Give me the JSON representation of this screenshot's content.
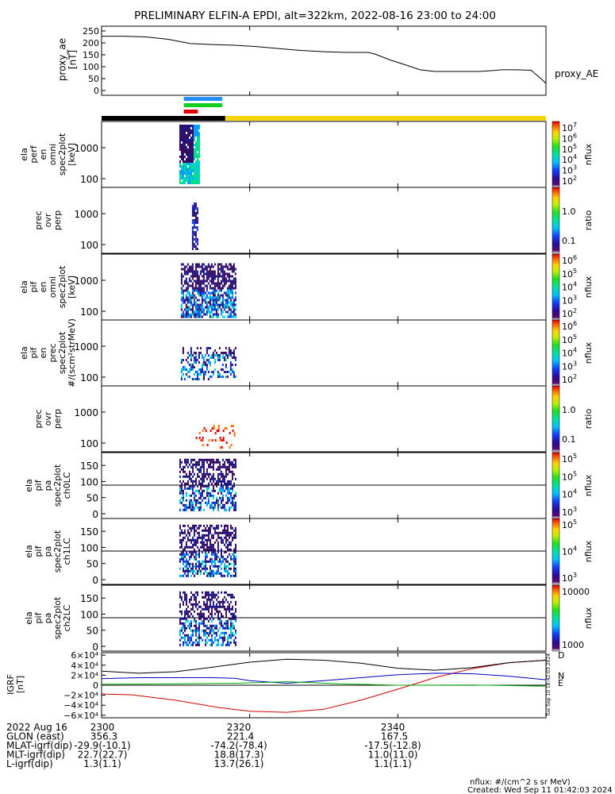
{
  "page": {
    "title": "PRELIMINARY ELFIN-A EPDI, alt=322km, 2022-08-16 23:00 to 24:00",
    "footer_unit": "nflux: #/(cm^2 s sr MeV)",
    "footer_created": "Created: Wed Sep 11 01:42:03 2024",
    "side_stamp": "Tue Sep 10 18:42:03 2024"
  },
  "colors": {
    "black": "#000000",
    "yellow": "#f5d50a",
    "blue_bar": "#1e90ff",
    "green_bar": "#10d020",
    "red_bar": "#e00000",
    "igrf_d": "#d00000",
    "igrf_n": "#0000c0",
    "igrf_e": "#00b000"
  },
  "chart_data": [
    {
      "type": "line",
      "id": "proxy_ae",
      "ylabel": "proxy_ae\n[nT]",
      "legend": "proxy_AE",
      "ylim": [
        0,
        270
      ],
      "yticks": [
        "0",
        "50",
        "100",
        "150",
        "200",
        "250"
      ],
      "x": [
        2300,
        2303,
        2306,
        2309,
        2312,
        2315,
        2318,
        2321,
        2324,
        2327,
        2330,
        2333,
        2336,
        2337,
        2339,
        2341,
        2343,
        2345,
        2348,
        2351,
        2353,
        2354,
        2356,
        2358,
        2359.5,
        2400
      ],
      "values": [
        228,
        228,
        225,
        215,
        197,
        193,
        190,
        184,
        176,
        168,
        163,
        160,
        160,
        152,
        128,
        108,
        87,
        80,
        80,
        80,
        84,
        87,
        87,
        85,
        45,
        30
      ]
    },
    {
      "type": "timeline",
      "id": "status_bars",
      "bars": [
        {
          "name": "science_blue",
          "start": 2311.1,
          "end": 2316.3,
          "color_key": "blue_bar"
        },
        {
          "name": "science_green",
          "start": 2311.1,
          "end": 2316.3,
          "color_key": "green_bar"
        },
        {
          "name": "science_red",
          "start": 2311.1,
          "end": 2313.0,
          "color_key": "red_bar"
        },
        {
          "name": "dark",
          "start": 2300,
          "end": 2316.7,
          "color_key": "black"
        },
        {
          "name": "sunlit",
          "start": 2316.7,
          "end": 2400,
          "color_key": "yellow"
        }
      ]
    },
    {
      "type": "heatmap",
      "id": "ela_perf_omni",
      "ylabel": "ela\nperf\nen\nomni\nspec2plot\n[keV]",
      "yscale": "log",
      "yticks": [
        "100",
        "1000"
      ],
      "colorbar": {
        "title": "nflux",
        "labels": [
          "10^7",
          "10^6",
          "10^5",
          "10^4",
          "10^3",
          "10^2"
        ]
      }
    },
    {
      "type": "heatmap",
      "id": "ela_perf_ratio",
      "ylabel": "prec\novr\nperp",
      "yscale": "log",
      "yticks": [
        "100",
        "1000"
      ],
      "colorbar": {
        "title": "ratio",
        "labels": [
          "1.0",
          "0.1"
        ]
      }
    },
    {
      "type": "heatmap",
      "id": "ela_pif_omni",
      "ylabel": "ela\npif\nen\nomni\nspec2plot\n[keV]",
      "yscale": "log",
      "yticks": [
        "100",
        "1000"
      ],
      "colorbar": {
        "title": "nflux",
        "labels": [
          "10^6",
          "10^5",
          "10^4",
          "10^3",
          "10^2"
        ]
      }
    },
    {
      "type": "heatmap",
      "id": "ela_pif_prec",
      "ylabel": "ela\npif\nen\nprec\nspec2plot\n#/(scm²strMeV)",
      "yscale": "log",
      "yticks": [
        "100",
        "1000"
      ],
      "colorbar": {
        "title": "nflux",
        "labels": [
          "10^6",
          "10^5",
          "10^4",
          "10^3",
          "10^2"
        ]
      }
    },
    {
      "type": "heatmap",
      "id": "ela_pif_ratio",
      "ylabel": "prec\novr\nperp",
      "yscale": "log",
      "yticks": [
        "100",
        "1000"
      ],
      "colorbar": {
        "title": "ratio",
        "labels": [
          "1.0",
          "0.1"
        ]
      }
    },
    {
      "type": "heatmap",
      "id": "ela_pif_ch0",
      "ylabel": "ela\npif\npa\nspec2plot\nch0LC",
      "yticks": [
        "0",
        "50",
        "100",
        "150"
      ],
      "colorbar": {
        "title": "nflux",
        "labels": [
          "10^5",
          "10^5",
          "10^4",
          "10^3"
        ]
      }
    },
    {
      "type": "heatmap",
      "id": "ela_pif_ch1",
      "ylabel": "ela\npif\npa\nspec2plot\nch1LC",
      "yticks": [
        "0",
        "50",
        "100",
        "150"
      ],
      "colorbar": {
        "title": "nflux",
        "labels": [
          "10^5",
          "10^4",
          "10^3"
        ]
      }
    },
    {
      "type": "heatmap",
      "id": "ela_pif_ch2",
      "ylabel": "ela\npif\npa\nspec2plot\nch2LC",
      "yticks": [
        "0",
        "50",
        "100",
        "150"
      ],
      "colorbar": {
        "title": "nflux",
        "labels": [
          "10000",
          "1000"
        ]
      }
    },
    {
      "type": "line",
      "id": "igrf",
      "ylabel": "IGRF\n[nT]",
      "ylim": [
        -65000,
        65000
      ],
      "yticks": [
        "6×10⁴",
        "4×10⁴",
        "2×10⁴",
        "0",
        "−2×10⁴",
        "−4×10⁴",
        "−6×10⁴"
      ],
      "series": [
        {
          "name": "D",
          "color_key": "igrf_d",
          "x": [
            2300,
            2301,
            2304,
            2310,
            2316,
            2320,
            2325,
            2330,
            2335,
            2340,
            2345,
            2350,
            2355,
            2400
          ],
          "values": [
            -17000,
            -18000,
            -19000,
            -30000,
            -45000,
            -52000,
            -54000,
            -48000,
            -30000,
            -8000,
            15000,
            33000,
            45000,
            50000
          ]
        },
        {
          "name": "N",
          "color_key": "igrf_n",
          "x": [
            2300,
            2305,
            2310,
            2315,
            2318,
            2320,
            2325,
            2330,
            2335,
            2340,
            2345,
            2350,
            2355,
            2400
          ],
          "values": [
            13000,
            15000,
            15000,
            15000,
            14000,
            9000,
            4000,
            9000,
            15000,
            21000,
            24000,
            23000,
            18000,
            11000
          ]
        },
        {
          "name": "E",
          "color_key": "igrf_e",
          "x": [
            2300,
            2310,
            2318,
            2325,
            2332,
            2340,
            2350,
            2400
          ],
          "values": [
            2000,
            3000,
            4000,
            7000,
            3000,
            0,
            500,
            -2000
          ]
        },
        {
          "name": "",
          "color_key": "black",
          "x": [
            2300,
            2305,
            2310,
            2315,
            2320,
            2325,
            2330,
            2335,
            2340,
            2345,
            2350,
            2355,
            2400
          ],
          "values": [
            28000,
            24000,
            27000,
            36000,
            46000,
            52000,
            50000,
            44000,
            34000,
            30000,
            35000,
            45000,
            50000
          ]
        }
      ]
    }
  ],
  "time_axis": {
    "ticks": [
      {
        "x": 2300,
        "label": "2300"
      },
      {
        "x": 2320,
        "label": "2320"
      },
      {
        "x": 2340,
        "label": "2340"
      }
    ]
  },
  "ephemeris": {
    "rows": [
      {
        "label": "2022 Aug 16",
        "values": [
          "",
          "",
          ""
        ]
      },
      {
        "label": "GLON (east)",
        "values": [
          "356.3",
          "221.4",
          "167.5"
        ]
      },
      {
        "label": "MLAT-igrf(dip)",
        "values": [
          "-29.9(-10.1)",
          "-74.2(-78.4)",
          "-17.5(-12.8)"
        ]
      },
      {
        "label": "MLT-igrf(dip)",
        "values": [
          "22.7(22.7)",
          "18.8(17.3)",
          "11.0(11.0)"
        ]
      },
      {
        "label": "L-igrf(dip)",
        "values": [
          "1.3(1.1)",
          "13.7(26.1)",
          "1.1(1.1)"
        ]
      }
    ]
  }
}
